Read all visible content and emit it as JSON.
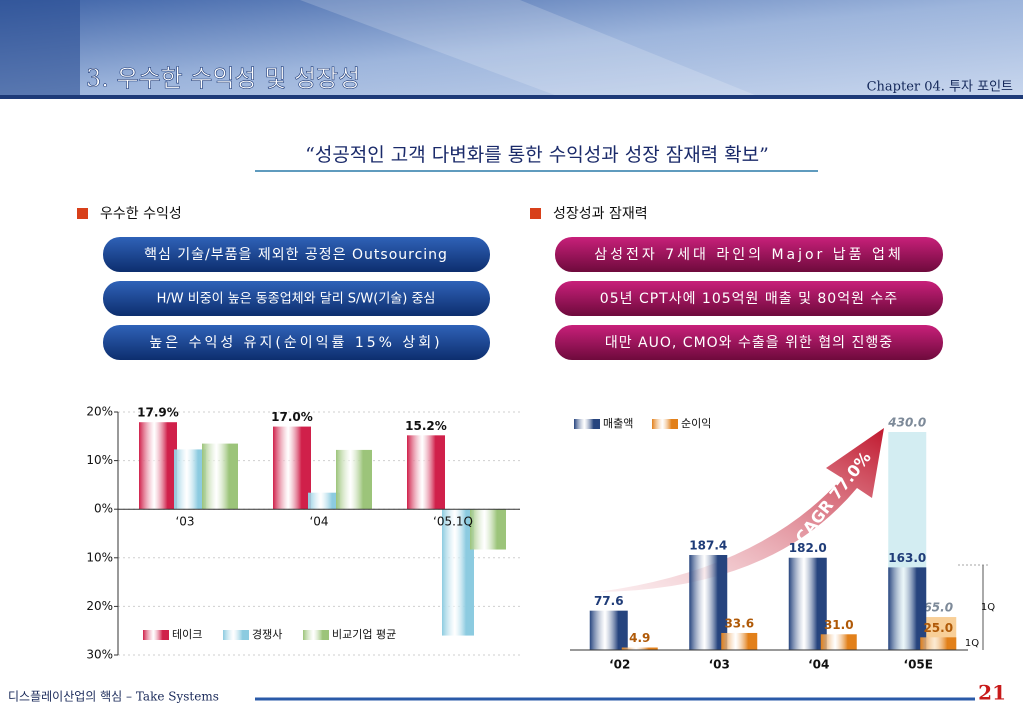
{
  "header": {
    "title": "3. 우수한 수익성 및 성장성",
    "chapter": "Chapter 04. 투자 포인트"
  },
  "headline": "“성공적인 고객 다변화를 통한 수익성과 성장 잠재력 확보”",
  "sections": [
    {
      "heading": "우수한 수익성",
      "items": [
        "핵심 기술/부품을 제외한 공정은 Outsourcing",
        "H/W 비중이 높은 동종업체와 달리 S/W(기술) 중심",
        "높은 수익성 유지(순이익률 15% 상회)"
      ]
    },
    {
      "heading": "성장성과 잠재력",
      "items": [
        "삼성전자 7세대 라인의 Major 납품 업체",
        "05년 CPT사에 105억원 매출 및 80억원 수주",
        "대만 AUO, CMO와 수출을 위한 협의 진행중"
      ]
    }
  ],
  "chart_data": [
    {
      "type": "bar",
      "categories": [
        "‘03",
        "‘04",
        "‘05.1Q"
      ],
      "series": [
        {
          "name": "테이크",
          "color": "#d0204a",
          "values": [
            17.9,
            17.0,
            15.2
          ],
          "value_labels": [
            "17.9%",
            "17.0%",
            "15.2%"
          ]
        },
        {
          "name": "경쟁사",
          "color": "#8ccbe0",
          "values": [
            12.3,
            3.4,
            -26.0
          ]
        },
        {
          "name": "비교기업 평균",
          "color": "#9cc47a",
          "values": [
            13.5,
            12.2,
            -8.3
          ]
        }
      ],
      "ylim": [
        -30,
        20
      ],
      "yticks": [
        {
          "value": -30,
          "label": "30%"
        },
        {
          "value": -20,
          "label": "20%"
        },
        {
          "value": -10,
          "label": "10%"
        },
        {
          "value": 0,
          "label": "0%"
        },
        {
          "value": 10,
          "label": "10%"
        },
        {
          "value": 20,
          "label": "20%"
        }
      ],
      "grid": true
    },
    {
      "type": "bar",
      "categories": [
        "‘02",
        "‘03",
        "‘04",
        "‘05E"
      ],
      "series": [
        {
          "name": "매출액",
          "color": "#26447e",
          "values": [
            77.6,
            187.4,
            182.0,
            163.0
          ],
          "value_labels": [
            "77.6",
            "187.4",
            "182.0",
            "163.0"
          ]
        },
        {
          "name": "순이익",
          "color": "#e2801a",
          "values": [
            4.9,
            33.6,
            31.0,
            25.0
          ],
          "value_labels": [
            "4.9",
            "33.6",
            "31.0",
            "25.0"
          ]
        },
        {
          "color": "#d3edf2",
          "values": [
            null,
            null,
            null,
            430.0
          ],
          "value_labels": [
            null,
            null,
            null,
            "430.0"
          ]
        },
        {
          "color": "#f8cf98",
          "values": [
            null,
            null,
            null,
            65.0
          ],
          "value_labels": [
            null,
            null,
            null,
            "65.0"
          ]
        }
      ],
      "annotations": [
        "CAGR 77.0%",
        "1Q",
        "1Q"
      ]
    }
  ],
  "footer": {
    "text": "디스플레이산업의 핵심 – Take Systems",
    "page": "21"
  }
}
